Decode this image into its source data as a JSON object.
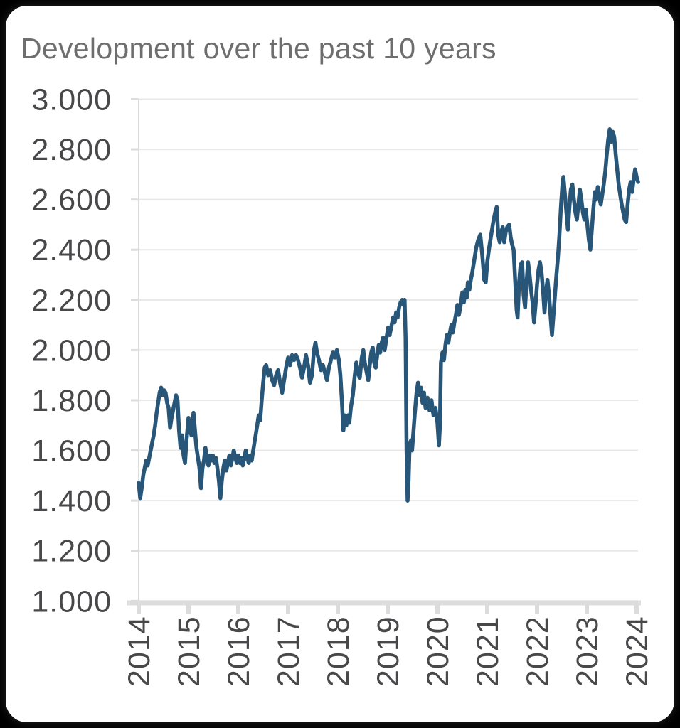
{
  "title": "Development over the past 10 years",
  "colors": {
    "page_background": "#000000",
    "card_background": "#ffffff",
    "title_text": "#6e6e6e",
    "tick_label_text": "#48484a",
    "grid_line": "#e8e8e8",
    "axis_line": "#dcdcdc",
    "series_line": "#285678"
  },
  "chart_data": {
    "type": "line",
    "title": "Development over the past 10 years",
    "xlabel": "",
    "ylabel": "",
    "grid": "horizontal",
    "legend": "none",
    "xlim": [
      2014,
      2024.1
    ],
    "ylim": [
      1.0,
      3.0
    ],
    "line_color": "#285678",
    "x_tick_labels": [
      "2014",
      "2015",
      "2016",
      "2017",
      "2018",
      "2019",
      "2020",
      "2021",
      "2022",
      "2023",
      "2024"
    ],
    "x_tick_values": [
      2014,
      2015,
      2016,
      2017,
      2018,
      2019,
      2020,
      2021,
      2022,
      2023,
      2024
    ],
    "y_tick_labels": [
      "3.000",
      "2.800",
      "2.600",
      "2.400",
      "2.200",
      "2.000",
      "1.800",
      "1.600",
      "1.400",
      "1.200",
      "1.000"
    ],
    "y_tick_values": [
      3.0,
      2.8,
      2.6,
      2.4,
      2.2,
      2.0,
      1.8,
      1.6,
      1.4,
      1.2,
      1.0
    ],
    "points": [
      [
        2014.0,
        1.47
      ],
      [
        2014.03,
        1.41
      ],
      [
        2014.06,
        1.45
      ],
      [
        2014.09,
        1.5
      ],
      [
        2014.12,
        1.53
      ],
      [
        2014.15,
        1.56
      ],
      [
        2014.18,
        1.54
      ],
      [
        2014.21,
        1.57
      ],
      [
        2014.24,
        1.6
      ],
      [
        2014.27,
        1.63
      ],
      [
        2014.3,
        1.66
      ],
      [
        2014.33,
        1.7
      ],
      [
        2014.36,
        1.75
      ],
      [
        2014.39,
        1.79
      ],
      [
        2014.42,
        1.83
      ],
      [
        2014.45,
        1.85
      ],
      [
        2014.48,
        1.82
      ],
      [
        2014.51,
        1.84
      ],
      [
        2014.54,
        1.83
      ],
      [
        2014.57,
        1.79
      ],
      [
        2014.6,
        1.77
      ],
      [
        2014.63,
        1.69
      ],
      [
        2014.66,
        1.73
      ],
      [
        2014.69,
        1.76
      ],
      [
        2014.72,
        1.79
      ],
      [
        2014.75,
        1.82
      ],
      [
        2014.78,
        1.8
      ],
      [
        2014.81,
        1.68
      ],
      [
        2014.84,
        1.61
      ],
      [
        2014.87,
        1.66
      ],
      [
        2014.9,
        1.58
      ],
      [
        2014.93,
        1.55
      ],
      [
        2014.96,
        1.64
      ],
      [
        2015.0,
        1.73
      ],
      [
        2015.03,
        1.68
      ],
      [
        2015.06,
        1.66
      ],
      [
        2015.1,
        1.75
      ],
      [
        2015.13,
        1.68
      ],
      [
        2015.16,
        1.61
      ],
      [
        2015.19,
        1.57
      ],
      [
        2015.22,
        1.53
      ],
      [
        2015.25,
        1.45
      ],
      [
        2015.28,
        1.53
      ],
      [
        2015.31,
        1.56
      ],
      [
        2015.34,
        1.61
      ],
      [
        2015.37,
        1.57
      ],
      [
        2015.4,
        1.54
      ],
      [
        2015.43,
        1.58
      ],
      [
        2015.46,
        1.56
      ],
      [
        2015.49,
        1.58
      ],
      [
        2015.52,
        1.55
      ],
      [
        2015.55,
        1.57
      ],
      [
        2015.58,
        1.53
      ],
      [
        2015.61,
        1.48
      ],
      [
        2015.64,
        1.41
      ],
      [
        2015.67,
        1.48
      ],
      [
        2015.7,
        1.53
      ],
      [
        2015.73,
        1.56
      ],
      [
        2015.76,
        1.52
      ],
      [
        2015.79,
        1.55
      ],
      [
        2015.82,
        1.58
      ],
      [
        2015.85,
        1.54
      ],
      [
        2015.88,
        1.57
      ],
      [
        2015.91,
        1.6
      ],
      [
        2015.94,
        1.57
      ],
      [
        2015.97,
        1.55
      ],
      [
        2016.0,
        1.58
      ],
      [
        2016.03,
        1.55
      ],
      [
        2016.06,
        1.57
      ],
      [
        2016.09,
        1.54
      ],
      [
        2016.12,
        1.57
      ],
      [
        2016.15,
        1.6
      ],
      [
        2016.18,
        1.57
      ],
      [
        2016.21,
        1.55
      ],
      [
        2016.24,
        1.58
      ],
      [
        2016.27,
        1.56
      ],
      [
        2016.3,
        1.6
      ],
      [
        2016.34,
        1.65
      ],
      [
        2016.38,
        1.7
      ],
      [
        2016.41,
        1.74
      ],
      [
        2016.44,
        1.72
      ],
      [
        2016.47,
        1.8
      ],
      [
        2016.5,
        1.87
      ],
      [
        2016.53,
        1.93
      ],
      [
        2016.56,
        1.94
      ],
      [
        2016.6,
        1.9
      ],
      [
        2016.64,
        1.92
      ],
      [
        2016.68,
        1.88
      ],
      [
        2016.72,
        1.86
      ],
      [
        2016.76,
        1.9
      ],
      [
        2016.8,
        1.92
      ],
      [
        2016.84,
        1.87
      ],
      [
        2016.88,
        1.83
      ],
      [
        2016.92,
        1.88
      ],
      [
        2016.96,
        1.93
      ],
      [
        2017.0,
        1.97
      ],
      [
        2017.04,
        1.94
      ],
      [
        2017.08,
        1.98
      ],
      [
        2017.12,
        1.96
      ],
      [
        2017.16,
        1.98
      ],
      [
        2017.2,
        1.96
      ],
      [
        2017.24,
        1.93
      ],
      [
        2017.28,
        1.89
      ],
      [
        2017.32,
        1.93
      ],
      [
        2017.36,
        1.98
      ],
      [
        2017.4,
        1.94
      ],
      [
        2017.44,
        1.87
      ],
      [
        2017.48,
        1.9
      ],
      [
        2017.52,
        2.0
      ],
      [
        2017.55,
        2.03
      ],
      [
        2017.58,
        1.99
      ],
      [
        2017.62,
        1.96
      ],
      [
        2017.66,
        1.92
      ],
      [
        2017.7,
        1.94
      ],
      [
        2017.74,
        1.91
      ],
      [
        2017.78,
        1.88
      ],
      [
        2017.82,
        1.93
      ],
      [
        2017.86,
        1.96
      ],
      [
        2017.9,
        1.99
      ],
      [
        2017.94,
        1.97
      ],
      [
        2017.98,
        2.0
      ],
      [
        2018.02,
        1.96
      ],
      [
        2018.05,
        1.9
      ],
      [
        2018.08,
        1.8
      ],
      [
        2018.11,
        1.68
      ],
      [
        2018.14,
        1.74
      ],
      [
        2018.17,
        1.7
      ],
      [
        2018.2,
        1.74
      ],
      [
        2018.23,
        1.71
      ],
      [
        2018.26,
        1.77
      ],
      [
        2018.3,
        1.82
      ],
      [
        2018.34,
        1.9
      ],
      [
        2018.37,
        1.95
      ],
      [
        2018.4,
        1.91
      ],
      [
        2018.44,
        1.89
      ],
      [
        2018.48,
        1.97
      ],
      [
        2018.51,
        2.0
      ],
      [
        2018.54,
        1.95
      ],
      [
        2018.58,
        1.91
      ],
      [
        2018.61,
        1.88
      ],
      [
        2018.64,
        1.94
      ],
      [
        2018.67,
        1.99
      ],
      [
        2018.7,
        2.01
      ],
      [
        2018.73,
        1.95
      ],
      [
        2018.76,
        1.93
      ],
      [
        2018.79,
        1.98
      ],
      [
        2018.82,
        2.02
      ],
      [
        2018.85,
        1.99
      ],
      [
        2018.88,
        2.03
      ],
      [
        2018.91,
        2.05
      ],
      [
        2018.94,
        2.0
      ],
      [
        2018.97,
        2.04
      ],
      [
        2019.01,
        2.09
      ],
      [
        2019.04,
        2.06
      ],
      [
        2019.08,
        2.1
      ],
      [
        2019.11,
        2.13
      ],
      [
        2019.14,
        2.11
      ],
      [
        2019.17,
        2.15
      ],
      [
        2019.2,
        2.13
      ],
      [
        2019.23,
        2.17
      ],
      [
        2019.26,
        2.19
      ],
      [
        2019.29,
        2.2
      ],
      [
        2019.32,
        2.18
      ],
      [
        2019.34,
        2.2
      ],
      [
        2019.36,
        2.05
      ],
      [
        2019.38,
        1.6
      ],
      [
        2019.4,
        1.4
      ],
      [
        2019.42,
        1.48
      ],
      [
        2019.44,
        1.62
      ],
      [
        2019.47,
        1.64
      ],
      [
        2019.49,
        1.6
      ],
      [
        2019.52,
        1.68
      ],
      [
        2019.55,
        1.76
      ],
      [
        2019.58,
        1.83
      ],
      [
        2019.61,
        1.87
      ],
      [
        2019.64,
        1.82
      ],
      [
        2019.67,
        1.85
      ],
      [
        2019.7,
        1.79
      ],
      [
        2019.73,
        1.83
      ],
      [
        2019.76,
        1.77
      ],
      [
        2019.8,
        1.81
      ],
      [
        2019.84,
        1.76
      ],
      [
        2019.88,
        1.8
      ],
      [
        2019.92,
        1.74
      ],
      [
        2019.96,
        1.77
      ],
      [
        2020.0,
        1.71
      ],
      [
        2020.03,
        1.62
      ],
      [
        2020.05,
        1.7
      ],
      [
        2020.07,
        1.95
      ],
      [
        2020.1,
        1.99
      ],
      [
        2020.13,
        1.96
      ],
      [
        2020.16,
        2.02
      ],
      [
        2020.19,
        2.06
      ],
      [
        2020.22,
        2.03
      ],
      [
        2020.25,
        2.07
      ],
      [
        2020.28,
        2.1
      ],
      [
        2020.31,
        2.07
      ],
      [
        2020.34,
        2.11
      ],
      [
        2020.37,
        2.14
      ],
      [
        2020.4,
        2.18
      ],
      [
        2020.43,
        2.14
      ],
      [
        2020.46,
        2.17
      ],
      [
        2020.5,
        2.23
      ],
      [
        2020.53,
        2.19
      ],
      [
        2020.56,
        2.24
      ],
      [
        2020.59,
        2.21
      ],
      [
        2020.61,
        2.27
      ],
      [
        2020.64,
        2.24
      ],
      [
        2020.67,
        2.28
      ],
      [
        2020.7,
        2.31
      ],
      [
        2020.74,
        2.36
      ],
      [
        2020.78,
        2.41
      ],
      [
        2020.82,
        2.44
      ],
      [
        2020.86,
        2.46
      ],
      [
        2020.9,
        2.38
      ],
      [
        2020.94,
        2.28
      ],
      [
        2020.97,
        2.27
      ],
      [
        2021.0,
        2.35
      ],
      [
        2021.04,
        2.41
      ],
      [
        2021.08,
        2.46
      ],
      [
        2021.12,
        2.51
      ],
      [
        2021.16,
        2.55
      ],
      [
        2021.19,
        2.57
      ],
      [
        2021.22,
        2.46
      ],
      [
        2021.25,
        2.43
      ],
      [
        2021.28,
        2.47
      ],
      [
        2021.31,
        2.49
      ],
      [
        2021.34,
        2.43
      ],
      [
        2021.37,
        2.47
      ],
      [
        2021.4,
        2.49
      ],
      [
        2021.44,
        2.5
      ],
      [
        2021.47,
        2.45
      ],
      [
        2021.5,
        2.42
      ],
      [
        2021.53,
        2.4
      ],
      [
        2021.56,
        2.28
      ],
      [
        2021.59,
        2.16
      ],
      [
        2021.61,
        2.13
      ],
      [
        2021.64,
        2.27
      ],
      [
        2021.67,
        2.34
      ],
      [
        2021.7,
        2.35
      ],
      [
        2021.73,
        2.22
      ],
      [
        2021.76,
        2.17
      ],
      [
        2021.79,
        2.27
      ],
      [
        2021.82,
        2.35
      ],
      [
        2021.85,
        2.3
      ],
      [
        2021.88,
        2.24
      ],
      [
        2021.91,
        2.19
      ],
      [
        2021.94,
        2.11
      ],
      [
        2021.97,
        2.18
      ],
      [
        2022.0,
        2.26
      ],
      [
        2022.03,
        2.32
      ],
      [
        2022.06,
        2.35
      ],
      [
        2022.09,
        2.31
      ],
      [
        2022.12,
        2.24
      ],
      [
        2022.15,
        2.15
      ],
      [
        2022.18,
        2.23
      ],
      [
        2022.21,
        2.28
      ],
      [
        2022.24,
        2.22
      ],
      [
        2022.27,
        2.14
      ],
      [
        2022.3,
        2.06
      ],
      [
        2022.33,
        2.14
      ],
      [
        2022.36,
        2.22
      ],
      [
        2022.39,
        2.3
      ],
      [
        2022.42,
        2.37
      ],
      [
        2022.45,
        2.46
      ],
      [
        2022.48,
        2.57
      ],
      [
        2022.51,
        2.66
      ],
      [
        2022.53,
        2.69
      ],
      [
        2022.56,
        2.62
      ],
      [
        2022.59,
        2.55
      ],
      [
        2022.62,
        2.48
      ],
      [
        2022.65,
        2.57
      ],
      [
        2022.68,
        2.64
      ],
      [
        2022.71,
        2.66
      ],
      [
        2022.74,
        2.6
      ],
      [
        2022.77,
        2.55
      ],
      [
        2022.8,
        2.52
      ],
      [
        2022.83,
        2.58
      ],
      [
        2022.86,
        2.64
      ],
      [
        2022.89,
        2.6
      ],
      [
        2022.92,
        2.55
      ],
      [
        2022.95,
        2.52
      ],
      [
        2022.98,
        2.56
      ],
      [
        2023.01,
        2.5
      ],
      [
        2023.04,
        2.44
      ],
      [
        2023.07,
        2.4
      ],
      [
        2023.1,
        2.48
      ],
      [
        2023.13,
        2.56
      ],
      [
        2023.16,
        2.63
      ],
      [
        2023.19,
        2.6
      ],
      [
        2023.22,
        2.65
      ],
      [
        2023.25,
        2.61
      ],
      [
        2023.28,
        2.58
      ],
      [
        2023.31,
        2.62
      ],
      [
        2023.34,
        2.66
      ],
      [
        2023.37,
        2.71
      ],
      [
        2023.4,
        2.78
      ],
      [
        2023.43,
        2.84
      ],
      [
        2023.46,
        2.88
      ],
      [
        2023.49,
        2.83
      ],
      [
        2023.52,
        2.87
      ],
      [
        2023.55,
        2.85
      ],
      [
        2023.58,
        2.78
      ],
      [
        2023.61,
        2.72
      ],
      [
        2023.64,
        2.66
      ],
      [
        2023.67,
        2.62
      ],
      [
        2023.7,
        2.58
      ],
      [
        2023.73,
        2.55
      ],
      [
        2023.76,
        2.52
      ],
      [
        2023.79,
        2.51
      ],
      [
        2023.82,
        2.58
      ],
      [
        2023.85,
        2.64
      ],
      [
        2023.88,
        2.67
      ],
      [
        2023.91,
        2.63
      ],
      [
        2023.94,
        2.68
      ],
      [
        2023.97,
        2.72
      ],
      [
        2024.0,
        2.69
      ],
      [
        2024.03,
        2.67
      ]
    ]
  }
}
